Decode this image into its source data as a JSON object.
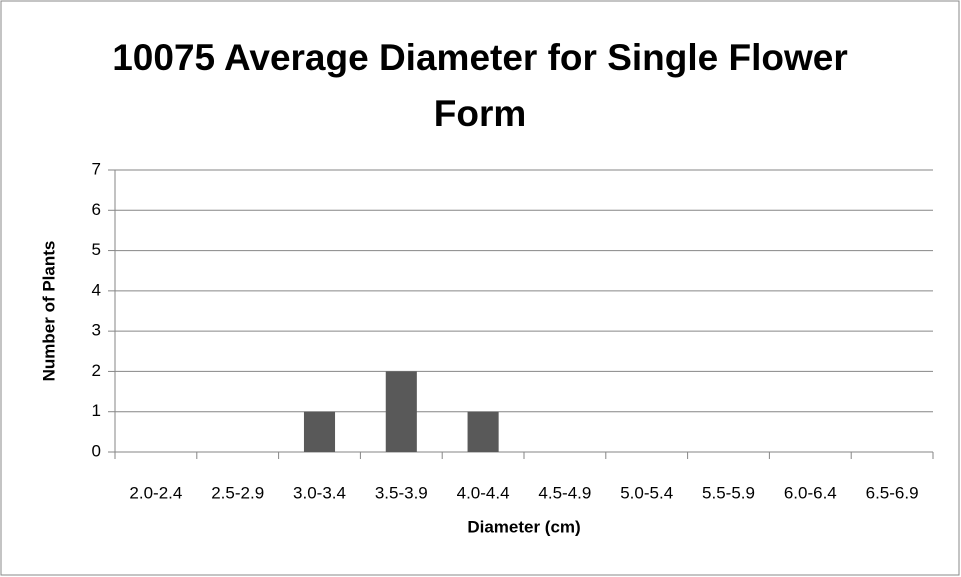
{
  "chart_data": {
    "type": "bar",
    "title": "10075 Average Diameter for Single Flower Form",
    "x_label": "Diameter (cm)",
    "y_label": "Number of Plants",
    "categories": [
      "2.0-2.4",
      "2.5-2.9",
      "3.0-3.4",
      "3.5-3.9",
      "4.0-4.4",
      "4.5-4.9",
      "5.0-5.4",
      "5.5-5.9",
      "6.0-6.4",
      "6.5-6.9"
    ],
    "values": [
      0,
      0,
      1,
      2,
      1,
      0,
      0,
      0,
      0,
      0
    ],
    "color": "#595959",
    "ylim": [
      0,
      7
    ],
    "yticks": [
      0,
      1,
      2,
      3,
      4,
      5,
      6,
      7
    ],
    "grid": true
  }
}
